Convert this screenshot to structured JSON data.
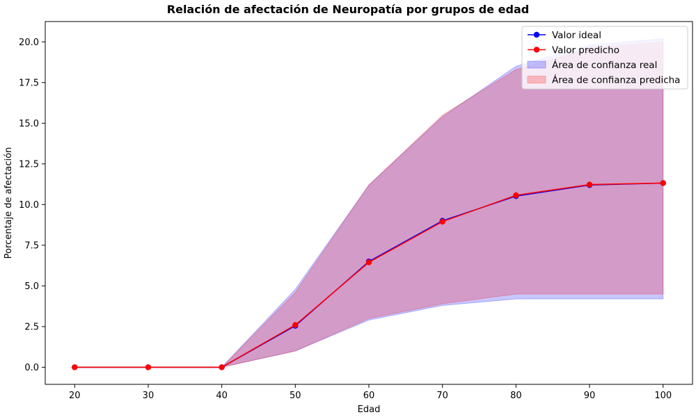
{
  "chart_data": {
    "type": "line",
    "title": "Relación de afectación de Neuropatía por grupos de edad",
    "xlabel": "Edad",
    "ylabel": "Porcentaje de afectación",
    "x": [
      20,
      30,
      40,
      50,
      60,
      70,
      80,
      90,
      100
    ],
    "xlim": [
      16,
      104
    ],
    "ylim": [
      -1.05,
      21.25
    ],
    "xticks": [
      20,
      30,
      40,
      50,
      60,
      70,
      80,
      90,
      100
    ],
    "yticks": [
      0.0,
      2.5,
      5.0,
      7.5,
      10.0,
      12.5,
      15.0,
      17.5,
      20.0
    ],
    "ytick_labels": [
      "0.0",
      "2.5",
      "5.0",
      "7.5",
      "10.0",
      "12.5",
      "15.0",
      "17.5",
      "20.0"
    ],
    "grid": false,
    "legend_position": "top-right",
    "series": [
      {
        "name": "Valor ideal",
        "color": "#0000ff",
        "values": [
          0,
          0,
          0,
          2.55,
          6.5,
          9.0,
          10.52,
          11.2,
          11.32
        ]
      },
      {
        "name": "Valor predicho",
        "color": "#ff0000",
        "values": [
          0,
          0,
          0,
          2.6,
          6.45,
          8.95,
          10.57,
          11.23,
          11.32
        ]
      }
    ],
    "bands": [
      {
        "name": "Área de confianza real",
        "color": "#0000ff",
        "lower": [
          0,
          0,
          0,
          1.0,
          2.9,
          3.8,
          4.2,
          4.2,
          4.2
        ],
        "upper": [
          0,
          0,
          0,
          4.8,
          11.2,
          15.4,
          18.5,
          19.8,
          20.2
        ]
      },
      {
        "name": "Área de confianza predicha",
        "color": "#ff0000",
        "lower": [
          0,
          0,
          0,
          1.0,
          3.0,
          3.9,
          4.5,
          4.5,
          4.5
        ],
        "upper": [
          0,
          0,
          0,
          4.6,
          11.2,
          15.5,
          18.3,
          19.6,
          20.0
        ]
      }
    ]
  }
}
